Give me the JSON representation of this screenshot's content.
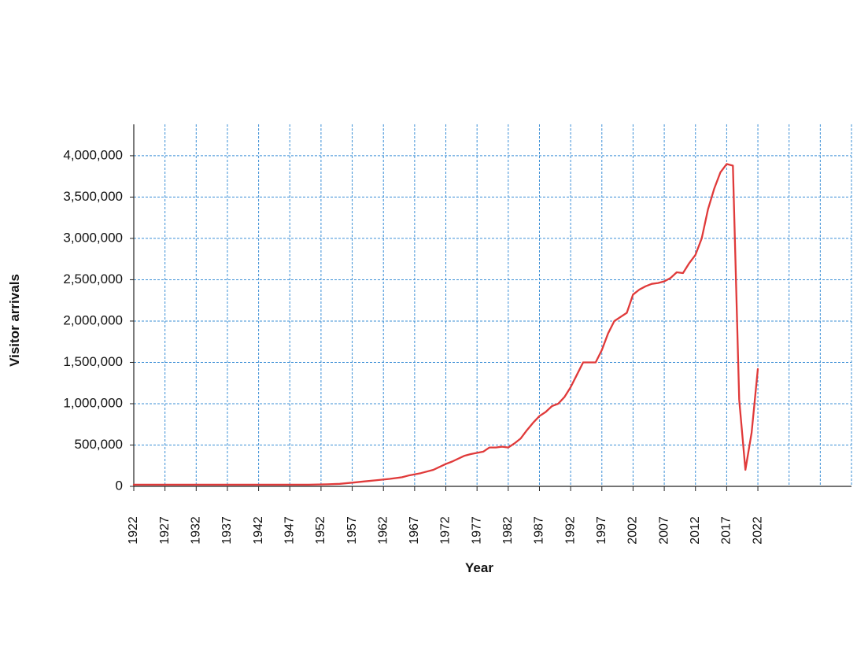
{
  "chart_data": {
    "type": "line",
    "title": "",
    "xlabel": "Year",
    "ylabel": "Visitor arrivals",
    "xlim": [
      1922,
      2037
    ],
    "ylim": [
      0,
      4380000
    ],
    "grid": true,
    "x_ticks": [
      1922,
      1927,
      1932,
      1937,
      1942,
      1947,
      1952,
      1957,
      1962,
      1967,
      1972,
      1977,
      1982,
      1987,
      1992,
      1997,
      2002,
      2007,
      2012,
      2017,
      2022
    ],
    "y_ticks": [
      0,
      500000,
      1000000,
      1500000,
      2000000,
      2500000,
      3000000,
      3500000,
      4000000
    ],
    "y_tick_labels": [
      "0",
      "500,000",
      "1,000,000",
      "1,500,000",
      "2,000,000",
      "2,500,000",
      "3,000,000",
      "3,500,000",
      "4,000,000"
    ],
    "colors": {
      "line": "#e03a3a",
      "grid": "#3b8fd6",
      "axis": "#222222"
    },
    "series": [
      {
        "x": [
          1922,
          1930,
          1940,
          1950,
          1953,
          1955,
          1957,
          1959,
          1961,
          1963,
          1965,
          1966,
          1968,
          1970,
          1972,
          1973,
          1975,
          1976,
          1978,
          1979,
          1980,
          1981,
          1982,
          1983,
          1984,
          1985,
          1986,
          1987,
          1988,
          1989,
          1990,
          1991,
          1992,
          1993,
          1994,
          1995,
          1996,
          1997,
          1998,
          1999,
          2000,
          2001,
          2002,
          2003,
          2004,
          2005,
          2006,
          2007,
          2008,
          2009,
          2010,
          2011,
          2012,
          2013,
          2014,
          2015,
          2016,
          2017,
          2018,
          2019,
          2020,
          2021,
          2022
        ],
        "y": [
          20000,
          20000,
          20000,
          20000,
          25000,
          30000,
          45000,
          60000,
          75000,
          90000,
          110000,
          130000,
          160000,
          200000,
          270000,
          300000,
          370000,
          390000,
          420000,
          470000,
          470000,
          480000,
          470000,
          520000,
          580000,
          680000,
          770000,
          850000,
          900000,
          970000,
          1000000,
          1080000,
          1200000,
          1350000,
          1500000,
          1500000,
          1500000,
          1650000,
          1850000,
          2000000,
          2050000,
          2100000,
          2320000,
          2380000,
          2420000,
          2450000,
          2460000,
          2480000,
          2520000,
          2590000,
          2580000,
          2700000,
          2800000,
          3000000,
          3350000,
          3600000,
          3800000,
          3900000,
          3880000,
          1050000,
          200000,
          650000,
          1420000
        ]
      }
    ]
  }
}
